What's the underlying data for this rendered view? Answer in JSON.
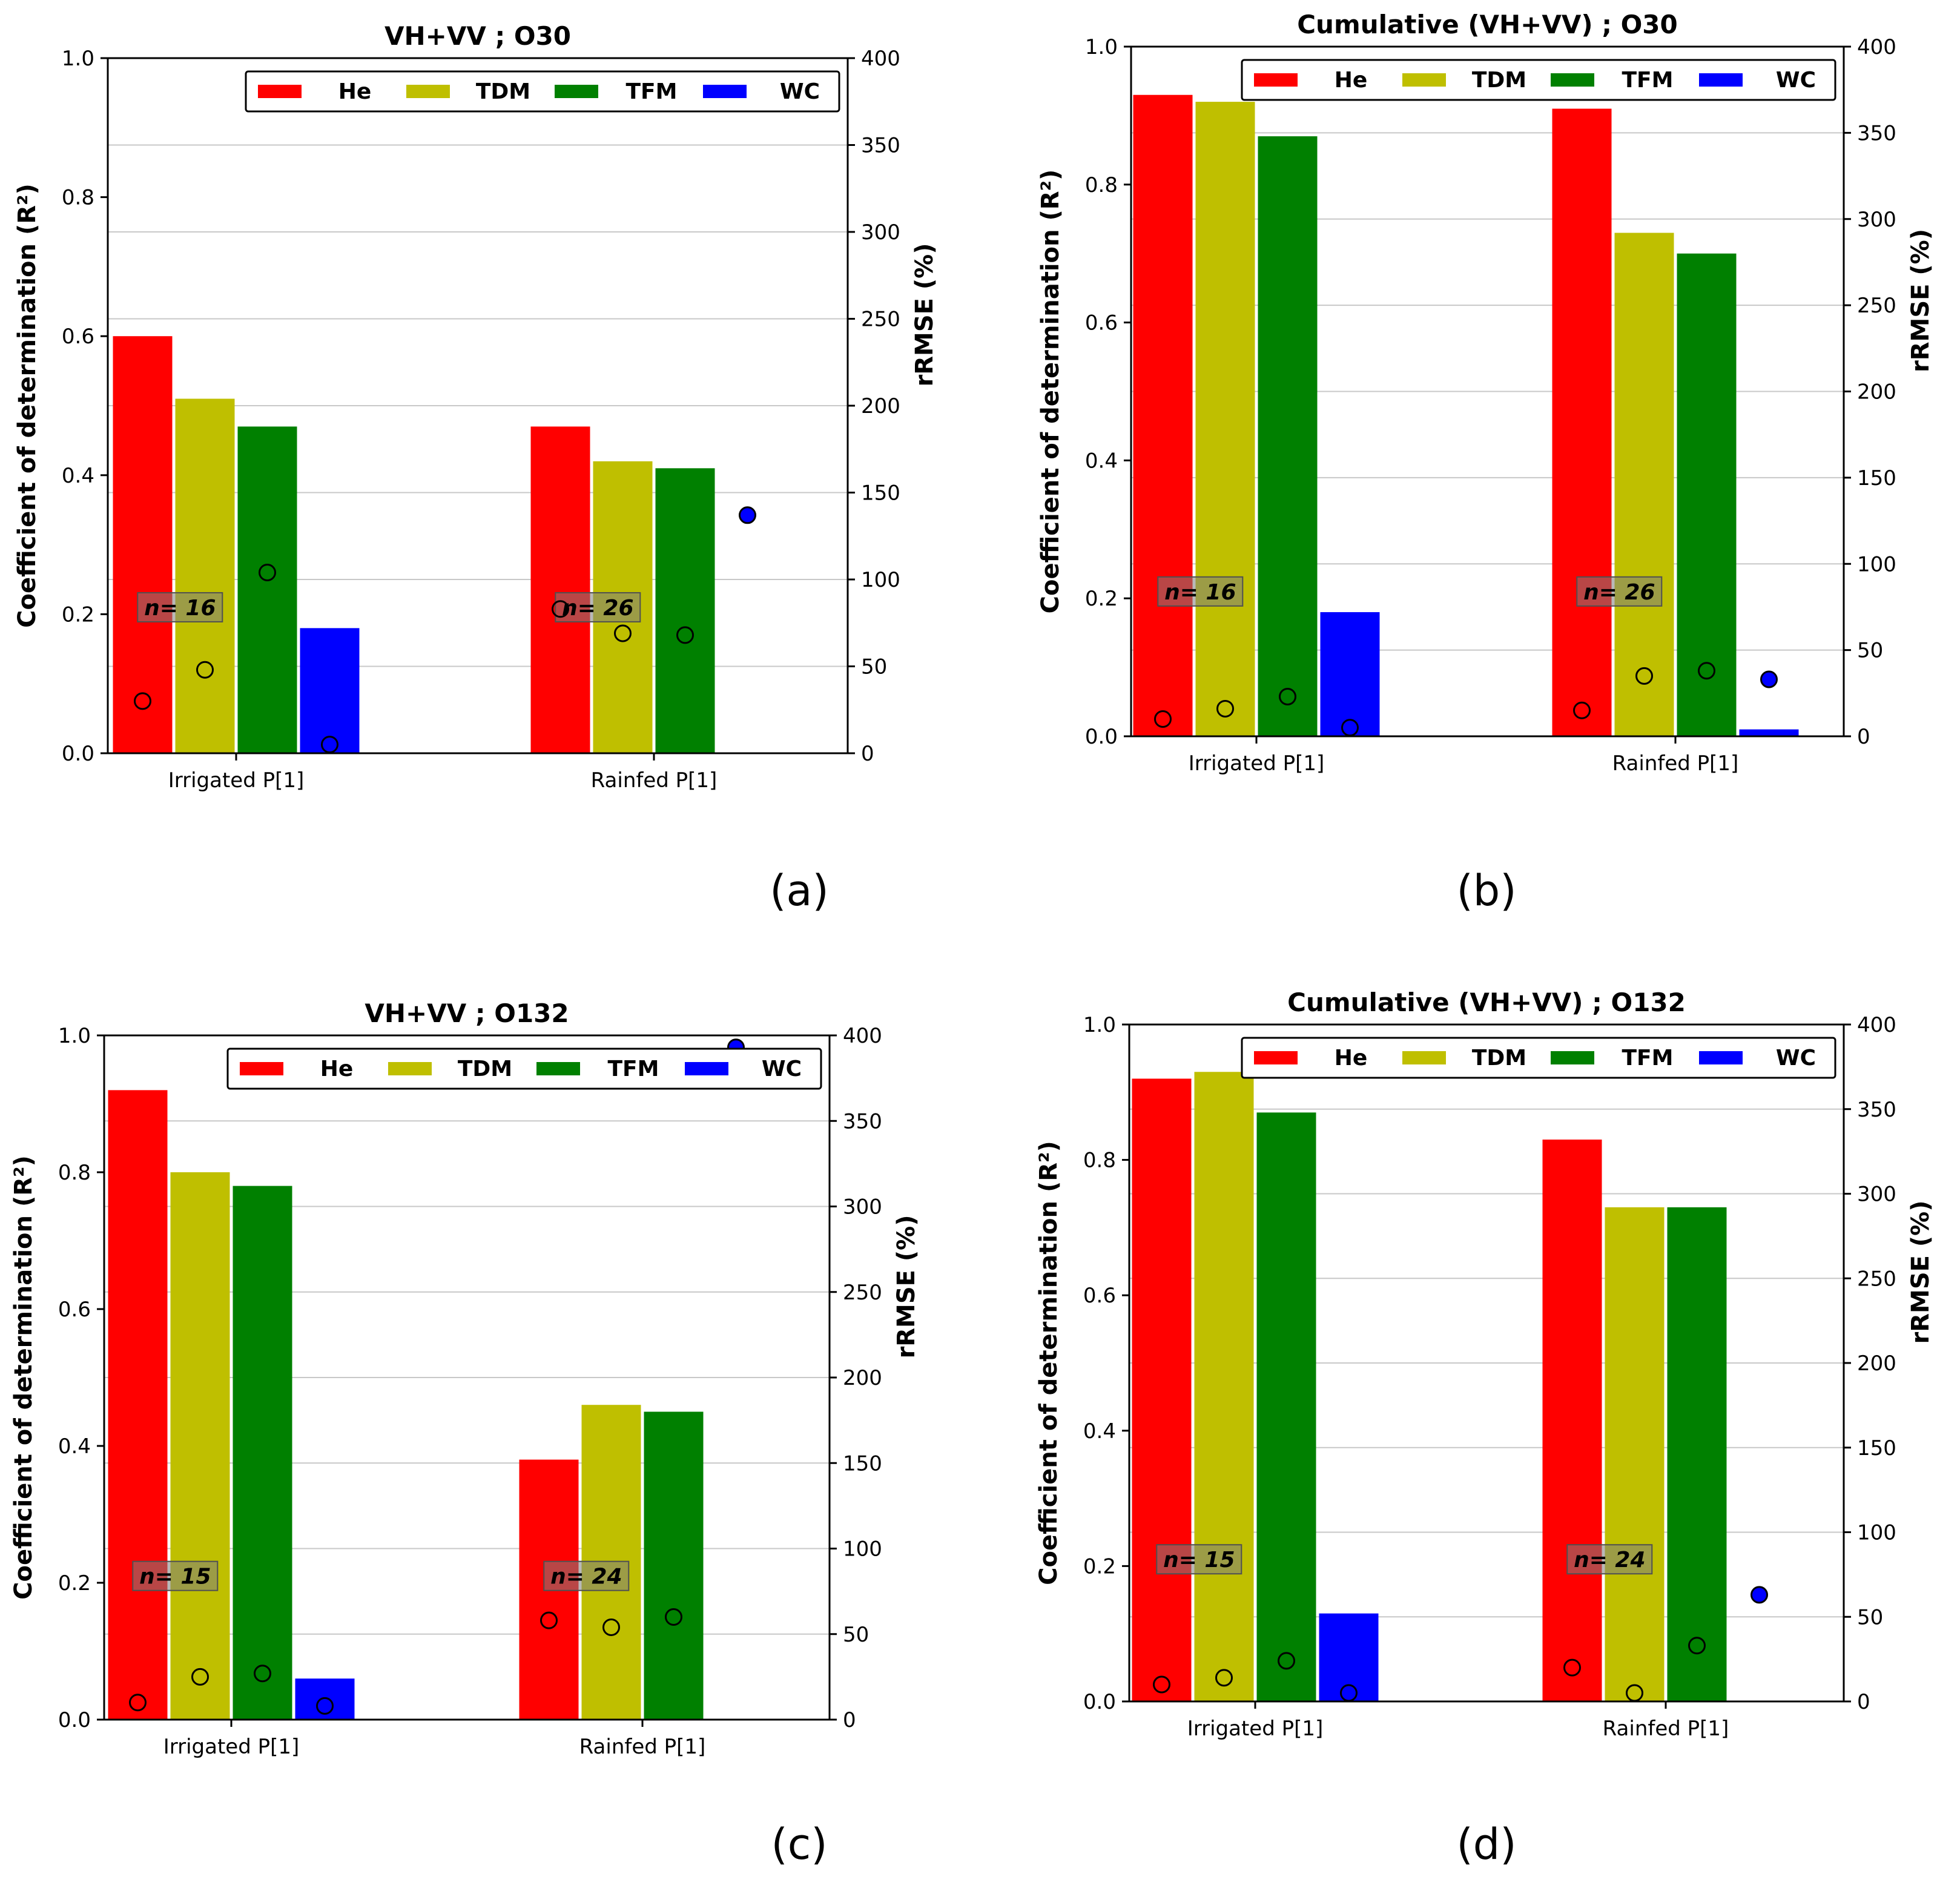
{
  "figure": {
    "colors": {
      "He": "#ff0000",
      "TDM": "#bfbf00",
      "TFM": "#008000",
      "WC": "#0000ff"
    }
  },
  "chart_data": [
    {
      "type": "bar",
      "panel_label": "(a)",
      "title": "VH+VV ; O30",
      "ylabel": "Coefficient of determination (R²)",
      "y2label": "rRMSE (%)",
      "ylim": [
        0,
        1.0
      ],
      "y2lim": [
        0,
        400
      ],
      "y_ticks": [
        "0.0",
        "0.2",
        "0.4",
        "0.6",
        "0.8",
        "1.0"
      ],
      "y2_ticks": [
        "0",
        "50",
        "100",
        "150",
        "200",
        "250",
        "300",
        "350",
        "400"
      ],
      "categories": [
        "Irrigated P[1]",
        "Rainfed P[1]"
      ],
      "n_labels": [
        "n= 16",
        "n= 26"
      ],
      "legend": [
        "He",
        "TDM",
        "TFM",
        "WC"
      ],
      "legend_position": "top-right",
      "series": [
        {
          "name": "He",
          "values": [
            0.6,
            0.47
          ],
          "rrmse": [
            30,
            83
          ]
        },
        {
          "name": "TDM",
          "values": [
            0.51,
            0.42
          ],
          "rrmse": [
            48,
            69
          ]
        },
        {
          "name": "TFM",
          "values": [
            0.47,
            0.41
          ],
          "rrmse": [
            104,
            68
          ]
        },
        {
          "name": "WC",
          "values": [
            0.18,
            0.0
          ],
          "rrmse": [
            5,
            137
          ]
        }
      ]
    },
    {
      "type": "bar",
      "panel_label": "(b)",
      "title": "Cumulative (VH+VV) ; O30",
      "ylabel": "Coefficient of determination (R²)",
      "y2label": "rRMSE (%)",
      "ylim": [
        0,
        1.0
      ],
      "y2lim": [
        0,
        400
      ],
      "y_ticks": [
        "0.0",
        "0.2",
        "0.4",
        "0.6",
        "0.8",
        "1.0"
      ],
      "y2_ticks": [
        "0",
        "50",
        "100",
        "150",
        "200",
        "250",
        "300",
        "350",
        "400"
      ],
      "categories": [
        "Irrigated P[1]",
        "Rainfed P[1]"
      ],
      "n_labels": [
        "n= 16",
        "n= 26"
      ],
      "legend": [
        "He",
        "TDM",
        "TFM",
        "WC"
      ],
      "legend_position": "top-right",
      "series": [
        {
          "name": "He",
          "values": [
            0.93,
            0.91
          ],
          "rrmse": [
            10,
            15
          ]
        },
        {
          "name": "TDM",
          "values": [
            0.92,
            0.73
          ],
          "rrmse": [
            16,
            35
          ]
        },
        {
          "name": "TFM",
          "values": [
            0.87,
            0.7
          ],
          "rrmse": [
            23,
            38
          ]
        },
        {
          "name": "WC",
          "values": [
            0.18,
            0.01
          ],
          "rrmse": [
            5,
            33
          ]
        }
      ]
    },
    {
      "type": "bar",
      "panel_label": "(c)",
      "title": "VH+VV ; O132",
      "ylabel": "Coefficient of determination (R²)",
      "y2label": "rRMSE (%)",
      "ylim": [
        0,
        1.0
      ],
      "y2lim": [
        0,
        400
      ],
      "y_ticks": [
        "0.0",
        "0.2",
        "0.4",
        "0.6",
        "0.8",
        "1.0"
      ],
      "y2_ticks": [
        "0",
        "50",
        "100",
        "150",
        "200",
        "250",
        "300",
        "350",
        "400"
      ],
      "categories": [
        "Irrigated P[1]",
        "Rainfed P[1]"
      ],
      "n_labels": [
        "n= 15",
        "n= 24"
      ],
      "legend": [
        "He",
        "TDM",
        "TFM",
        "WC"
      ],
      "legend_position": "top-right",
      "series": [
        {
          "name": "He",
          "values": [
            0.92,
            0.38
          ],
          "rrmse": [
            10,
            58
          ]
        },
        {
          "name": "TDM",
          "values": [
            0.8,
            0.46
          ],
          "rrmse": [
            25,
            54
          ]
        },
        {
          "name": "TFM",
          "values": [
            0.78,
            0.45
          ],
          "rrmse": [
            27,
            60
          ]
        },
        {
          "name": "WC",
          "values": [
            0.06,
            0.0
          ],
          "rrmse": [
            8,
            393
          ]
        }
      ]
    },
    {
      "type": "bar",
      "panel_label": "(d)",
      "title": "Cumulative (VH+VV) ; O132",
      "ylabel": "Coefficient of determination (R²)",
      "y2label": "rRMSE (%)",
      "ylim": [
        0,
        1.0
      ],
      "y2lim": [
        0,
        400
      ],
      "y_ticks": [
        "0.0",
        "0.2",
        "0.4",
        "0.6",
        "0.8",
        "1.0"
      ],
      "y2_ticks": [
        "0",
        "50",
        "100",
        "150",
        "200",
        "250",
        "300",
        "350",
        "400"
      ],
      "categories": [
        "Irrigated P[1]",
        "Rainfed P[1]"
      ],
      "n_labels": [
        "n= 15",
        "n= 24"
      ],
      "legend": [
        "He",
        "TDM",
        "TFM",
        "WC"
      ],
      "legend_position": "top-right",
      "series": [
        {
          "name": "He",
          "values": [
            0.92,
            0.83
          ],
          "rrmse": [
            10,
            20
          ]
        },
        {
          "name": "TDM",
          "values": [
            0.93,
            0.73
          ],
          "rrmse": [
            14,
            5
          ]
        },
        {
          "name": "TFM",
          "values": [
            0.87,
            0.73
          ],
          "rrmse": [
            24,
            33
          ]
        },
        {
          "name": "WC",
          "values": [
            0.13,
            0.0
          ],
          "rrmse": [
            5,
            63
          ]
        }
      ]
    }
  ]
}
